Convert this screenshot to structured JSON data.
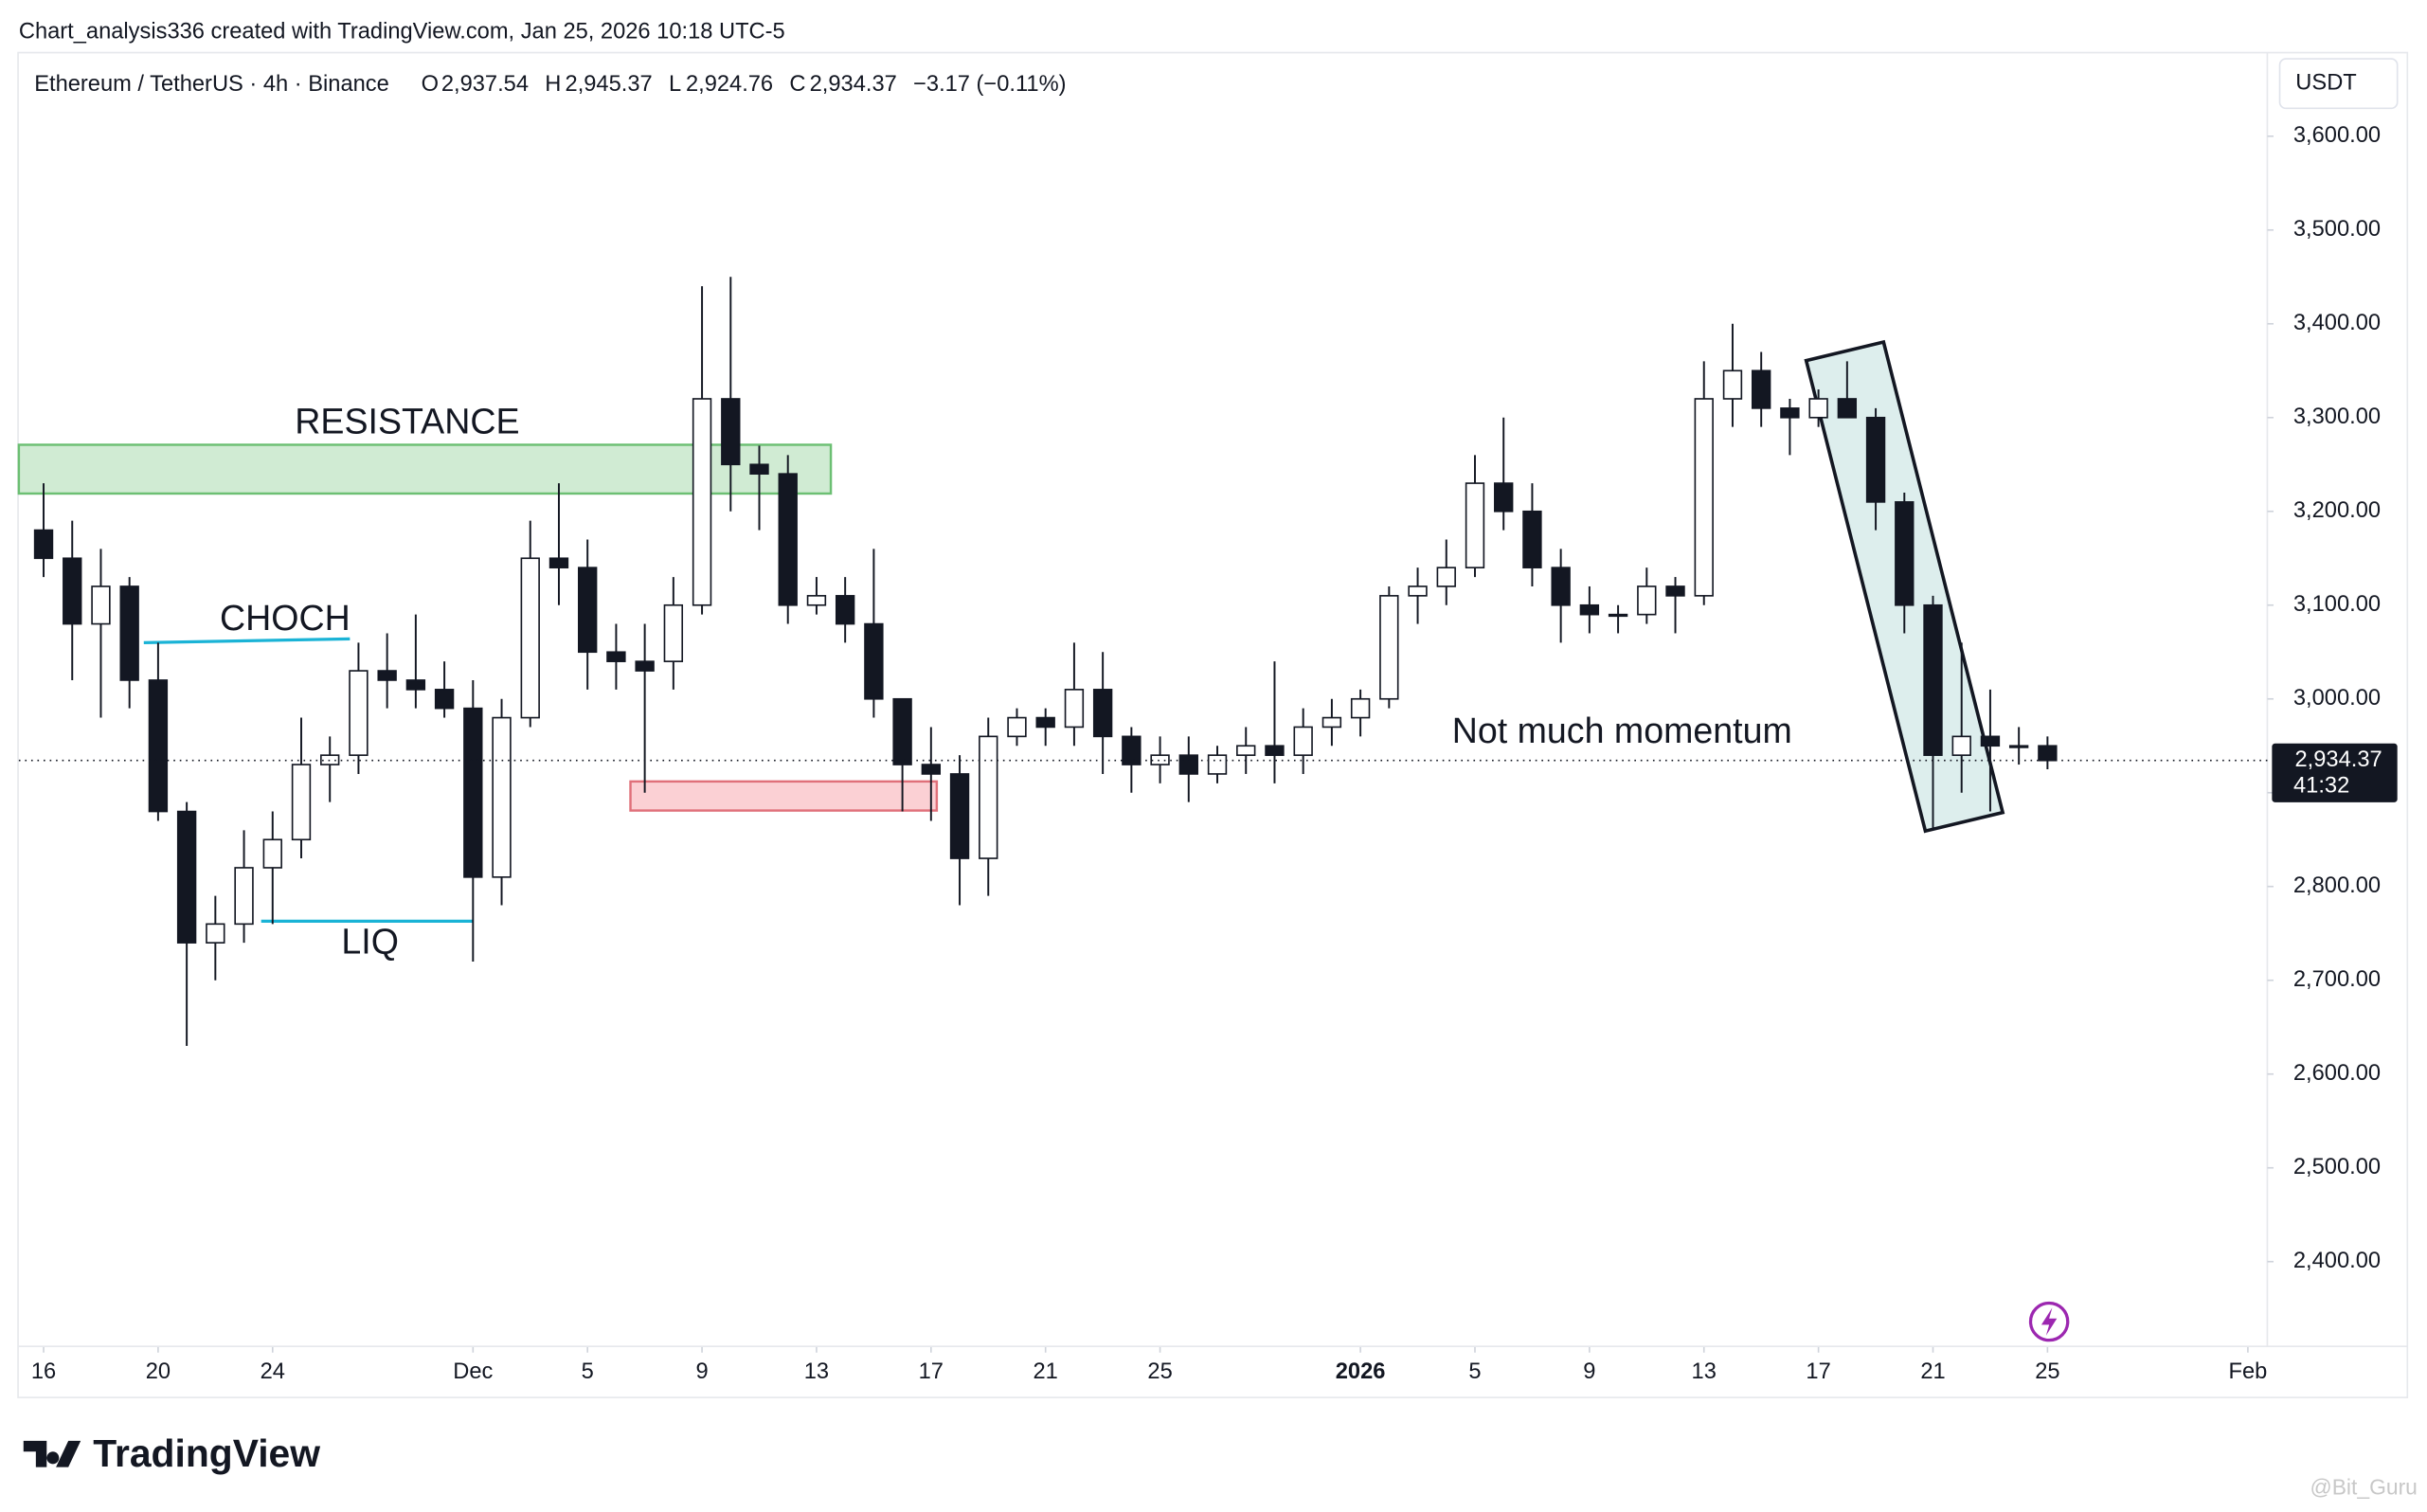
{
  "header": {
    "credit": "Chart_analysis336 created with TradingView.com, Jan 25, 2026 10:18 UTC-5",
    "symbol": "Ethereum / TetherUS · 4h · Binance",
    "ohlc": [
      {
        "label": "O",
        "value": "2,937.54"
      },
      {
        "label": "H",
        "value": "2,945.37"
      },
      {
        "label": "L",
        "value": "2,924.76"
      },
      {
        "label": "C",
        "value": "2,934.37"
      }
    ],
    "change": "−3.17 (−0.11%)",
    "currency": "USDT"
  },
  "footer": {
    "logo": "TradingView",
    "watermark": "@Bit_Guru"
  },
  "chart_data": {
    "type": "candlestick",
    "up_color": "#ffffff",
    "down_color": "#131722",
    "edge_color": "#131722",
    "x": [
      0,
      1,
      2,
      3,
      4,
      5,
      6,
      7,
      8,
      9,
      10,
      11,
      12,
      13,
      14,
      15,
      16,
      17,
      18,
      19,
      20,
      21,
      22,
      23,
      24,
      25,
      26,
      27,
      28,
      29,
      30,
      31,
      32,
      33,
      34,
      35,
      36,
      37,
      38,
      39,
      40,
      41,
      42,
      43,
      44,
      45,
      46,
      47,
      48,
      49,
      50,
      51,
      52,
      53,
      54,
      55,
      56,
      57,
      58,
      59,
      60,
      61,
      62,
      63,
      64,
      65,
      66,
      67,
      68,
      69,
      70
    ],
    "open": [
      3180,
      3150,
      3080,
      3120,
      3020,
      2880,
      2740,
      2760,
      2820,
      2850,
      2930,
      2940,
      3030,
      3020,
      3010,
      2990,
      2810,
      2980,
      3150,
      3140,
      3050,
      3040,
      3040,
      3100,
      3320,
      3250,
      3240,
      3100,
      3110,
      3080,
      3000,
      2930,
      2920,
      2830,
      2960,
      2980,
      2970,
      3010,
      2960,
      2930,
      2940,
      2920,
      2940,
      2950,
      2940,
      2970,
      2980,
      3000,
      3110,
      3120,
      3140,
      3230,
      3200,
      3140,
      3100,
      3090,
      3090,
      3120,
      3110,
      3320,
      3350,
      3310,
      3300,
      3320,
      3300,
      3210,
      3100,
      2940,
      2960,
      2950,
      2950
    ],
    "high": [
      3230,
      3190,
      3160,
      3130,
      3060,
      2890,
      2790,
      2860,
      2880,
      2980,
      2960,
      3060,
      3070,
      3090,
      3040,
      3020,
      3000,
      3190,
      3230,
      3170,
      3080,
      3080,
      3130,
      3440,
      3450,
      3270,
      3260,
      3130,
      3130,
      3160,
      3000,
      2970,
      2940,
      2980,
      2990,
      2990,
      3060,
      3050,
      2970,
      2960,
      2960,
      2950,
      2970,
      3040,
      2990,
      3000,
      3010,
      3120,
      3140,
      3170,
      3260,
      3300,
      3230,
      3160,
      3120,
      3100,
      3140,
      3130,
      3360,
      3400,
      3370,
      3320,
      3330,
      3360,
      3310,
      3220,
      3110,
      3060,
      3010,
      2970,
      2960
    ],
    "low": [
      3130,
      3020,
      2980,
      2990,
      2870,
      2630,
      2700,
      2740,
      2760,
      2830,
      2890,
      2920,
      2990,
      2990,
      2980,
      2720,
      2780,
      2970,
      3100,
      3010,
      3010,
      2900,
      3010,
      3090,
      3200,
      3180,
      3080,
      3090,
      3060,
      2980,
      2880,
      2870,
      2780,
      2790,
      2950,
      2950,
      2950,
      2920,
      2900,
      2910,
      2890,
      2910,
      2920,
      2910,
      2920,
      2950,
      2960,
      2990,
      3080,
      3100,
      3130,
      3180,
      3120,
      3060,
      3070,
      3070,
      3080,
      3070,
      3100,
      3290,
      3290,
      3260,
      3290,
      3300,
      3180,
      3070,
      2860,
      2900,
      2880,
      2930,
      2925
    ],
    "close": [
      3150,
      3080,
      3120,
      3020,
      2880,
      2740,
      2760,
      2820,
      2850,
      2930,
      2940,
      3030,
      3020,
      3010,
      2990,
      2810,
      2980,
      3150,
      3140,
      3050,
      3040,
      3030,
      3100,
      3320,
      3250,
      3240,
      3100,
      3110,
      3080,
      3000,
      2930,
      2920,
      2830,
      2960,
      2980,
      2970,
      3010,
      2960,
      2930,
      2940,
      2920,
      2940,
      2950,
      2940,
      2970,
      2980,
      3000,
      3110,
      3120,
      3140,
      3230,
      3200,
      3140,
      3100,
      3090,
      3090,
      3120,
      3110,
      3320,
      3350,
      3310,
      3300,
      3320,
      3300,
      3210,
      3100,
      2940,
      2960,
      2950,
      2950,
      2934.37
    ],
    "xlim": [
      -0.865,
      77.68
    ],
    "xticks": [
      {
        "value": 0,
        "label": "16"
      },
      {
        "value": 4,
        "label": "20"
      },
      {
        "value": 8,
        "label": "24"
      },
      {
        "value": 15,
        "label": "Dec"
      },
      {
        "value": 19,
        "label": "5"
      },
      {
        "value": 23,
        "label": "9"
      },
      {
        "value": 27,
        "label": "13"
      },
      {
        "value": 31,
        "label": "17"
      },
      {
        "value": 35,
        "label": "21"
      },
      {
        "value": 39,
        "label": "25"
      },
      {
        "value": 46,
        "label": "2026"
      },
      {
        "value": 50,
        "label": "5"
      },
      {
        "value": 54,
        "label": "9"
      },
      {
        "value": 58,
        "label": "13"
      },
      {
        "value": 62,
        "label": "17"
      },
      {
        "value": 66,
        "label": "21"
      },
      {
        "value": 70,
        "label": "25"
      },
      {
        "value": 77,
        "label": "Feb"
      }
    ],
    "ylim": [
      2309.6,
      3687.5
    ],
    "yticks": [
      {
        "value": 2400,
        "label": "2,400.00"
      },
      {
        "value": 2500,
        "label": "2,500.00"
      },
      {
        "value": 2600,
        "label": "2,600.00"
      },
      {
        "value": 2700,
        "label": "2,700.00"
      },
      {
        "value": 2800,
        "label": "2,800.00"
      },
      {
        "value": 2900,
        "label": "2,900.00"
      },
      {
        "value": 3000,
        "label": "3,000.00"
      },
      {
        "value": 3100,
        "label": "3,100.00"
      },
      {
        "value": 3200,
        "label": "3,200.00"
      },
      {
        "value": 3300,
        "label": "3,300.00"
      },
      {
        "value": 3400,
        "label": "3,400.00"
      },
      {
        "value": 3500,
        "label": "3,500.00"
      },
      {
        "value": 3600,
        "label": "3,600.00"
      }
    ],
    "last_price": {
      "value": 2934.37,
      "label": "2,934.37"
    },
    "countdown": "41:32",
    "zones": [
      {
        "x": [
          -0.865,
          27.5
        ],
        "y": [
          3219,
          3271
        ],
        "color": "#d0ebd3",
        "edge": "#6cbf73"
      },
      {
        "x": [
          20.5,
          31.2
        ],
        "y": [
          2881,
          2912
        ],
        "color": "#fbd0d4",
        "edge": "#e0707a"
      }
    ],
    "levels": [
      {
        "x": [
          3.5,
          10.7
        ],
        "y": [
          3060,
          3064
        ],
        "color": "#1ab3d6"
      },
      {
        "x": [
          7.6,
          15.0
        ],
        "y": [
          2763,
          2763
        ],
        "color": "#1ab3d6"
      }
    ],
    "annotations": [
      "RESISTANCE",
      "CHOCH",
      "LIQ",
      "Not much momentum"
    ]
  }
}
